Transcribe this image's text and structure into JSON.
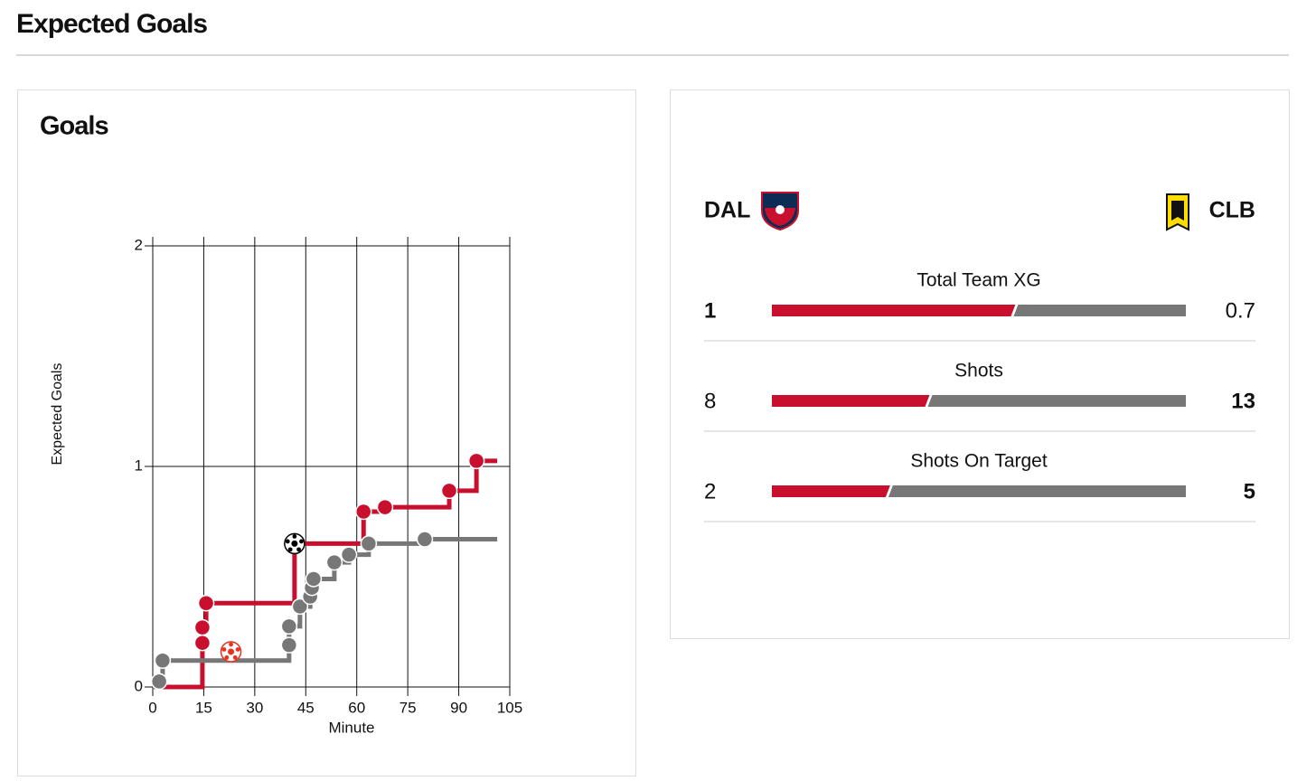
{
  "header": {
    "title": "Expected Goals"
  },
  "chart_data": {
    "type": "step",
    "title": "Goals",
    "x_label": "Minute",
    "y_label": "Expected Goals",
    "xlim": [
      0,
      105
    ],
    "xticks": [
      0,
      15,
      30,
      45,
      60,
      75,
      90,
      105
    ],
    "ylim": [
      0,
      2
    ],
    "yticks": [
      0,
      1,
      2
    ],
    "grid": true,
    "x_end": 101.3,
    "series": [
      {
        "name": "DAL",
        "color": "#c8102e",
        "x": [
          14.6,
          14.6,
          15.7,
          41.7,
          62,
          68.3,
          87.2,
          95.2
        ],
        "y": [
          0.2,
          0.27,
          0.38,
          0.65,
          0.795,
          0.815,
          0.89,
          1.025
        ]
      },
      {
        "name": "CLB",
        "color": "#777777",
        "x": [
          1.9,
          2.9,
          40.1,
          40.1,
          43.3,
          46.3,
          46.8,
          47.3,
          53.4,
          57.7,
          63.5,
          80
        ],
        "y": [
          0.025,
          0.12,
          0.19,
          0.275,
          0.365,
          0.41,
          0.45,
          0.49,
          0.565,
          0.6,
          0.65,
          0.67
        ]
      }
    ],
    "goals": {
      "x": [
        23,
        41.7
      ],
      "y": [
        0.16,
        0.65
      ],
      "color": [
        "#e8321e",
        "#000000"
      ]
    }
  },
  "stats": {
    "left_team": "DAL",
    "right_team": "CLB",
    "rows": [
      {
        "label": "Total Team XG",
        "left": 1,
        "right": 0.7
      },
      {
        "label": "Shots",
        "left": 8,
        "right": 13
      },
      {
        "label": "Shots On Target",
        "left": 2,
        "right": 5
      }
    ]
  }
}
